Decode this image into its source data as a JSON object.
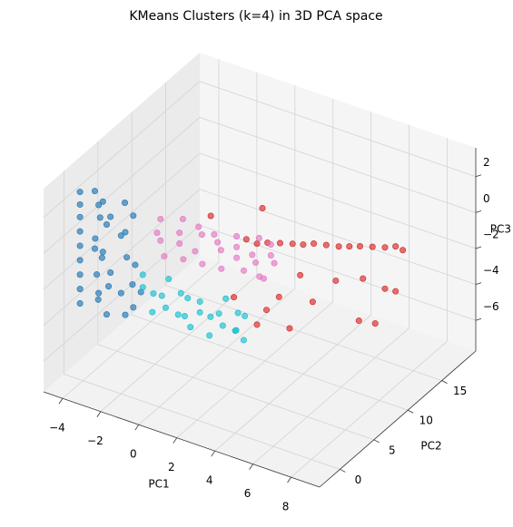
{
  "chart_data": {
    "type": "scatter3d",
    "title": "KMeans Clusters (k=4) in 3D PCA space",
    "xlabel": "PC1",
    "ylabel": "PC2",
    "zlabel": "PC3",
    "xlim": [
      -5,
      9.5
    ],
    "ylim": [
      -3,
      20
    ],
    "zlim": [
      -7.7,
      3.6
    ],
    "xticks": [
      {
        "value": -4,
        "label": "−4"
      },
      {
        "value": -2,
        "label": "−2"
      },
      0,
      2,
      4,
      6,
      8
    ],
    "yticks": [
      0,
      5,
      10,
      15
    ],
    "zticks": [
      {
        "value": -6,
        "label": "−6"
      },
      {
        "value": -4,
        "label": "−4"
      },
      {
        "value": -2,
        "label": "−2"
      },
      0,
      2
    ],
    "grid": true,
    "series": [
      {
        "color": "#1f77b4",
        "x": [
          -3.8,
          -3.2,
          -2.6,
          -1.8,
          -1.0,
          -3.8,
          -3.0,
          -2.2,
          -3.8,
          -3.1,
          -2.4,
          -1.6,
          -3.8,
          -3.0,
          -2.0,
          -3.8,
          -3.2,
          -2.6,
          -1.7,
          -0.9,
          -3.8,
          -3.0,
          -2.2,
          -3.8,
          -3.1,
          -2.3,
          -1.4,
          -0.6,
          -3.8,
          -3.0,
          -2.0,
          -1.0,
          -3.8,
          -3.2,
          -2.4,
          -1.6
        ],
        "y": [
          -1,
          -0.5,
          -1,
          0,
          -1,
          -1,
          -0.5,
          -1,
          -1,
          0,
          -1,
          -0.5,
          -1,
          -1,
          0,
          -1,
          -0.5,
          -1,
          0,
          -1,
          -1,
          0,
          -1,
          -1,
          -0.5,
          -1,
          0,
          -1,
          -1,
          -0.5,
          0,
          -1,
          -1,
          0,
          -1,
          -0.5
        ],
        "z": [
          3.2,
          3.3,
          3.1,
          3.0,
          2.9,
          2.5,
          2.6,
          2.4,
          1.8,
          1.7,
          1.9,
          1.6,
          1.0,
          0.9,
          1.1,
          0.2,
          0.1,
          0.3,
          0.0,
          0.2,
          -0.6,
          -0.5,
          -0.7,
          -1.4,
          -1.3,
          -1.5,
          -1.4,
          -1.2,
          -2.2,
          -2.3,
          -2.1,
          -2.2,
          -3.0,
          -2.9,
          -3.1,
          -3.0
        ]
      },
      {
        "color": "#d62728",
        "x": [
          3,
          3.2,
          3.5,
          3.8,
          4,
          4.2,
          4.5,
          4.8,
          5,
          5.2,
          5.5,
          5.8,
          6,
          6.2,
          6,
          5.8,
          3,
          4,
          2.5,
          3.5,
          4.5,
          5.5,
          6,
          5,
          3.8,
          2,
          4,
          2.8,
          5,
          4.2
        ],
        "y": [
          6,
          7,
          8,
          9,
          10,
          11,
          12,
          13,
          14,
          15,
          16,
          17,
          18,
          18.5,
          18,
          17,
          6,
          8,
          4,
          6,
          10,
          14,
          15,
          16,
          7,
          2,
          4,
          5,
          12,
          9
        ],
        "z": [
          0.5,
          0.3,
          0.06,
          -0.2,
          -0.5,
          -0.7,
          -1.0,
          -1.3,
          -1.55,
          -1.8,
          -2.05,
          -2.3,
          -2.5,
          -2.8,
          -5,
          -4.6,
          -4,
          -4.5,
          -2,
          -3,
          -3.5,
          -5.5,
          -5.8,
          -4,
          -2.5,
          3.0,
          3.5,
          1.0,
          -2.8,
          -1.8
        ]
      },
      {
        "color": "#17becf",
        "x": [
          -0.5,
          0.5,
          1.5,
          2.5,
          3.5,
          4.5,
          -0.5,
          0.5,
          1.5,
          2.5,
          3.5,
          4.5,
          -0.3,
          0.7,
          1.7,
          2.7,
          3.7,
          4.4,
          0,
          1,
          2,
          3,
          4,
          4.8
        ],
        "y": [
          -1,
          0,
          -1,
          -1,
          0,
          -1,
          -1,
          -1,
          0,
          -1,
          -1,
          0,
          0,
          -1,
          -1,
          0,
          -1,
          -1,
          -1,
          0,
          -1,
          -1,
          0,
          -1
        ],
        "z": [
          -0.2,
          -0.4,
          -0.5,
          -0.6,
          -0.4,
          -0.5,
          -0.9,
          -1.0,
          -1.1,
          -1.2,
          -0.9,
          -1.0,
          -1.5,
          -1.6,
          -1.7,
          -1.7,
          -1.5,
          -1.5,
          -2.1,
          -2.2,
          -2.2,
          -2.3,
          -2.0,
          -1.9
        ]
      },
      {
        "color": "#e377c2",
        "x": [
          -1,
          0,
          1,
          2,
          3,
          4,
          4.8,
          -1,
          0,
          1,
          2,
          3,
          4,
          4.8,
          -1,
          0,
          1,
          2,
          3,
          4,
          4.8,
          -0.8,
          0.2,
          1.2,
          2.2,
          3.2,
          4.2,
          4.6
        ],
        "y": [
          3,
          3.5,
          3,
          2.5,
          3,
          3.5,
          3,
          2.5,
          3,
          3.5,
          3,
          3,
          2.5,
          3,
          3,
          3,
          2.5,
          3.5,
          3,
          3,
          3.5,
          3,
          3,
          3,
          3,
          3.5,
          3,
          2.5
        ],
        "z": [
          1.4,
          1.6,
          1.7,
          1.8,
          1.9,
          2.0,
          2.1,
          0.8,
          1.0,
          1.1,
          1.2,
          1.3,
          1.4,
          1.5,
          0.2,
          0.4,
          0.5,
          0.6,
          0.7,
          0.8,
          0.9,
          -0.6,
          -0.4,
          -0.3,
          -0.2,
          -0.1,
          0.1,
          0.3
        ]
      }
    ]
  }
}
